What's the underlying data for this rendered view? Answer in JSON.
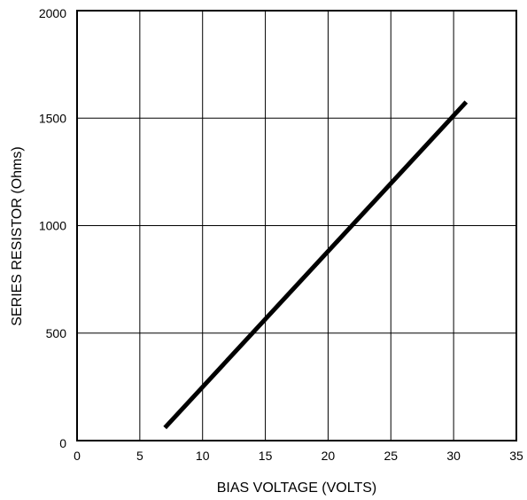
{
  "chart_data": {
    "type": "line",
    "title": "",
    "xlabel": "BIAS VOLTAGE (VOLTS)",
    "ylabel": "SERIES RESISTOR (Ohms)",
    "xlim": [
      0,
      35
    ],
    "ylim": [
      0,
      2000
    ],
    "x_ticks": [
      0,
      5,
      10,
      15,
      20,
      25,
      30,
      35
    ],
    "y_ticks": [
      0,
      500,
      1000,
      1500,
      2000
    ],
    "x_tick_labels": [
      "0",
      "5",
      "10",
      "15",
      "20",
      "25",
      "30",
      "35"
    ],
    "y_tick_labels": [
      "0",
      "500",
      "1000",
      "1500",
      "2000"
    ],
    "grid": true,
    "legend": "none",
    "series": [
      {
        "color": "#000000",
        "x": [
          7,
          31
        ],
        "y": [
          60,
          1575
        ]
      }
    ]
  }
}
